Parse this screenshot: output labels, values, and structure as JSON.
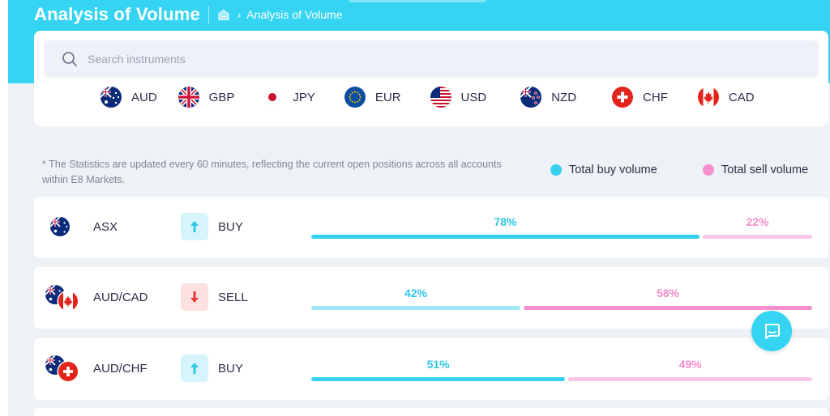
{
  "header": {
    "title": "Analysis of Volume",
    "breadcrumb_separator": "›",
    "breadcrumb_current": "Analysis of Volume"
  },
  "search": {
    "placeholder": "Search instruments",
    "value": ""
  },
  "currencies": [
    {
      "code": "AUD",
      "flag": "australia-flag"
    },
    {
      "code": "GBP",
      "flag": "uk-flag"
    },
    {
      "code": "JPY",
      "flag": "japan-flag"
    },
    {
      "code": "EUR",
      "flag": "eu-flag"
    },
    {
      "code": "USD",
      "flag": "usa-flag"
    },
    {
      "code": "NZD",
      "flag": "new-zealand-flag"
    },
    {
      "code": "CHF",
      "flag": "switzerland-flag"
    },
    {
      "code": "CAD",
      "flag": "canada-flag"
    }
  ],
  "note": "* The Statistics are updated every 60 minutes, reflecting the current open positions across all accounts within E8 Markets.",
  "legend": {
    "buy_label": "Total buy volume",
    "sell_label": "Total sell volume"
  },
  "colors": {
    "accent": "#35d4f2",
    "buy": "#37d0ee",
    "buy_light": "#9fe6f6",
    "sell": "#f58fcf",
    "sell_light": "#f8c6e6",
    "buy_text": "#2ec8ea",
    "sell_text": "#f48bcb",
    "buy_box_bg": "#d6f4fb",
    "sell_box_bg": "#fde0e0",
    "sell_arrow": "#e53935"
  },
  "rows": [
    {
      "symbol": "ASX",
      "direction": "BUY",
      "buy_pct": 78,
      "sell_pct": 22,
      "buy_label": "78%",
      "sell_label": "22%",
      "flags": [
        "australia-flag"
      ]
    },
    {
      "symbol": "AUD/CAD",
      "direction": "SELL",
      "buy_pct": 42,
      "sell_pct": 58,
      "buy_label": "42%",
      "sell_label": "58%",
      "flags": [
        "australia-flag",
        "canada-flag"
      ]
    },
    {
      "symbol": "AUD/CHF",
      "direction": "BUY",
      "buy_pct": 51,
      "sell_pct": 49,
      "buy_label": "51%",
      "sell_label": "49%",
      "flags": [
        "australia-flag",
        "switzerland-flag"
      ]
    }
  ],
  "chat": {
    "icon": "chat-icon"
  }
}
